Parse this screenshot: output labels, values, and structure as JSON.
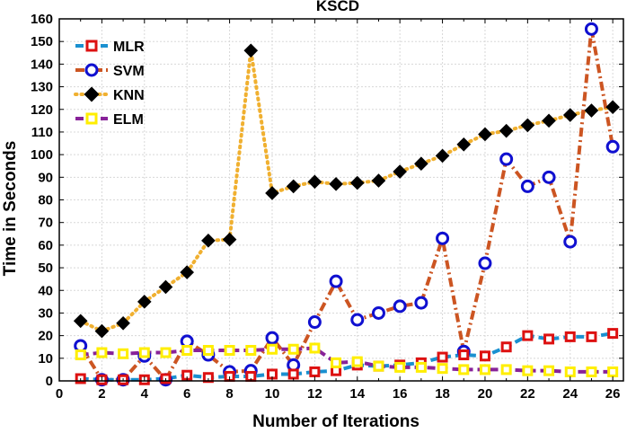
{
  "chart_data": {
    "type": "line",
    "title": "KSCD",
    "xlabel": "Number of Iterations",
    "ylabel": "Time in Seconds",
    "xlim": [
      0,
      26.5
    ],
    "ylim": [
      0,
      160
    ],
    "xticks": [
      0,
      2,
      4,
      6,
      8,
      10,
      12,
      14,
      16,
      18,
      20,
      22,
      24,
      26
    ],
    "yticks": [
      0,
      10,
      20,
      30,
      40,
      50,
      60,
      70,
      80,
      90,
      100,
      110,
      120,
      130,
      140,
      150,
      160
    ],
    "grid": true,
    "legend_position": "top-left",
    "x": [
      1,
      2,
      3,
      4,
      5,
      6,
      7,
      8,
      9,
      10,
      11,
      12,
      13,
      14,
      15,
      16,
      17,
      18,
      19,
      20,
      21,
      22,
      23,
      24,
      25,
      26
    ],
    "series": [
      {
        "name": "KNN",
        "line_color": "#f0b030",
        "marker": "diamond",
        "marker_fill": "#000000",
        "marker_edge": "#000000",
        "style": "dotted",
        "values": [
          26.5,
          22.0,
          25.5,
          35.0,
          41.5,
          48.0,
          62.0,
          62.5,
          146.0,
          83.0,
          86.0,
          88.0,
          87.0,
          87.5,
          88.5,
          92.5,
          96.0,
          99.5,
          104.5,
          109.0,
          110.5,
          113.0,
          115.0,
          117.5,
          119.5,
          121.0
        ]
      },
      {
        "name": "SVM",
        "line_color": "#cc5522",
        "marker": "circle",
        "marker_fill": "#ffffff",
        "marker_edge": "#1010d0",
        "style": "dashdot",
        "values": [
          15.5,
          0.5,
          0.5,
          11.0,
          0.5,
          17.5,
          11.5,
          4.0,
          4.5,
          19.0,
          7.0,
          26.0,
          44.0,
          27.0,
          30.0,
          33.0,
          34.5,
          63.0,
          13.0,
          52.0,
          98.0,
          86.0,
          90.0,
          61.5,
          155.5,
          103.5
        ]
      },
      {
        "name": "MLR",
        "line_color": "#1a90d0",
        "marker": "square",
        "marker_fill": "#ffffff",
        "marker_edge": "#dd1111",
        "style": "dashed",
        "values": [
          1.0,
          0.5,
          0.5,
          0.5,
          1.0,
          2.5,
          1.5,
          2.0,
          2.0,
          3.0,
          3.0,
          4.0,
          4.5,
          7.0,
          6.5,
          7.0,
          8.0,
          10.5,
          11.5,
          11.0,
          15.0,
          20.0,
          18.5,
          19.5,
          19.5,
          21.0
        ]
      },
      {
        "name": "ELM",
        "line_color": "#882299",
        "marker": "square",
        "marker_fill": "#ffffff",
        "marker_edge": "#ffee00",
        "style": "dashed",
        "values": [
          11.5,
          12.5,
          12.0,
          12.5,
          12.5,
          13.5,
          13.5,
          13.5,
          13.5,
          14.0,
          14.0,
          14.5,
          8.0,
          8.5,
          6.5,
          6.0,
          6.0,
          5.5,
          5.0,
          5.0,
          5.0,
          4.5,
          4.5,
          4.0,
          4.0,
          4.0
        ]
      }
    ],
    "legend_order": [
      "MLR",
      "SVM",
      "KNN",
      "ELM"
    ]
  }
}
